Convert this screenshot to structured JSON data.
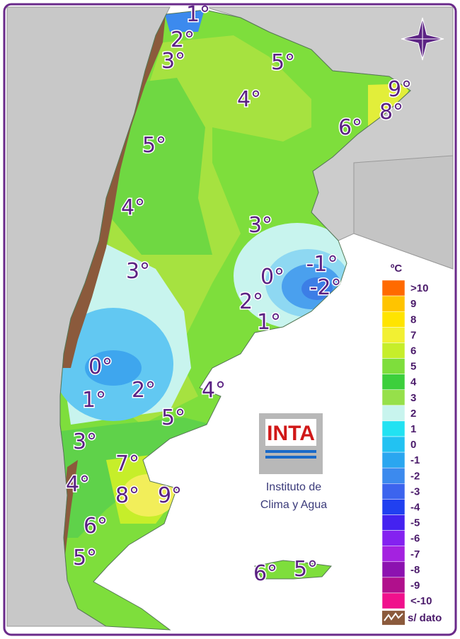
{
  "isotherm_labels": [
    "1°",
    "2°",
    "3°",
    "5°",
    "4°",
    "9°",
    "8°",
    "6°",
    "5°",
    "4°",
    "3°",
    "-1°",
    "0°",
    "-2°",
    "3°",
    "2°",
    "1°",
    "0°",
    "2°",
    "1°",
    "4°",
    "5°",
    "3°",
    "7°",
    "4°",
    "8°",
    "9°",
    "6°",
    "5°",
    "6°",
    "5°"
  ],
  "legend": {
    "title": "ºC",
    "items": [
      {
        "label": ">10",
        "color": "#ff6a00"
      },
      {
        "label": "9",
        "color": "#ffc400"
      },
      {
        "label": "8",
        "color": "#ffe400"
      },
      {
        "label": "7",
        "color": "#f2f032"
      },
      {
        "label": "6",
        "color": "#c6ee2a"
      },
      {
        "label": "5",
        "color": "#7ede3c"
      },
      {
        "label": "4",
        "color": "#3ccf3c"
      },
      {
        "label": "3",
        "color": "#96e04a"
      },
      {
        "label": "2",
        "color": "#c8f4ee"
      },
      {
        "label": "1",
        "color": "#22e2f2"
      },
      {
        "label": "0",
        "color": "#22c2f2"
      },
      {
        "label": "-1",
        "color": "#2aa6f0"
      },
      {
        "label": "-2",
        "color": "#3c8aee"
      },
      {
        "label": "-3",
        "color": "#3c64ee"
      },
      {
        "label": "-4",
        "color": "#2040f0"
      },
      {
        "label": "-5",
        "color": "#4422f0"
      },
      {
        "label": "-6",
        "color": "#8422f0"
      },
      {
        "label": "-7",
        "color": "#a422e0"
      },
      {
        "label": "-8",
        "color": "#8c12b0"
      },
      {
        "label": "-9",
        "color": "#b0108c"
      },
      {
        "label": "<-10",
        "color": "#f0108c"
      }
    ],
    "no_data": "s/ dato"
  },
  "logo": {
    "text": "INTA",
    "caption": [
      "Instituto de",
      "Clima y Agua"
    ]
  }
}
